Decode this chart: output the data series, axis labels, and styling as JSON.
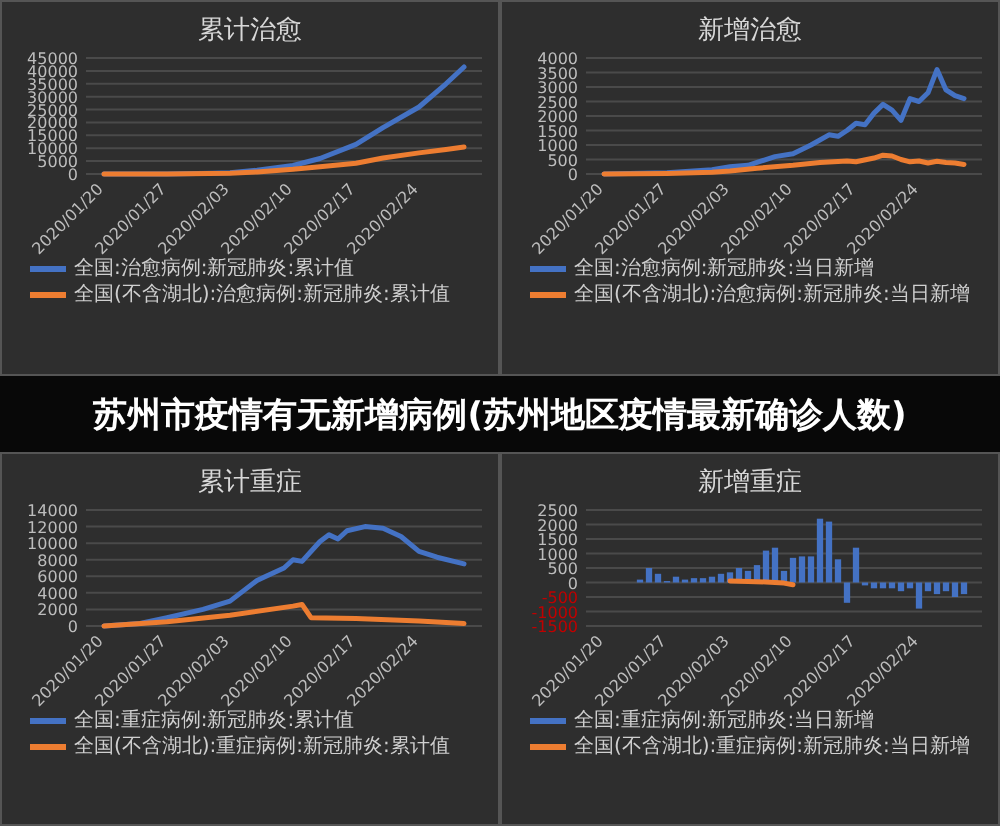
{
  "chart_data": [
    {
      "type": "line",
      "title": "累计治愈",
      "xlim": [
        "2020-01-18",
        "2020-03-02"
      ],
      "xticks": [
        {
          "value": "2020-01-20",
          "label": "2020/01/20"
        },
        {
          "value": "2020-01-27",
          "label": "2020/01/27"
        },
        {
          "value": "2020-02-03",
          "label": "2020/02/03"
        },
        {
          "value": "2020-02-10",
          "label": "2020/02/10"
        },
        {
          "value": "2020-02-17",
          "label": "2020/02/17"
        },
        {
          "value": "2020-02-24",
          "label": "2020/02/24"
        }
      ],
      "ylim": [
        0,
        45000
      ],
      "yticks": [
        0,
        5000,
        10000,
        15000,
        20000,
        25000,
        30000,
        35000,
        40000,
        45000
      ],
      "grid": "y",
      "legend": "bottom",
      "series": [
        {
          "name": "全国:治愈病例:新冠肺炎:累计值",
          "color": "#4472c4",
          "x": [
            "2020-01-20",
            "2020-01-27",
            "2020-02-01",
            "2020-02-03",
            "2020-02-06",
            "2020-02-10",
            "2020-02-13",
            "2020-02-17",
            "2020-02-20",
            "2020-02-24",
            "2020-02-27",
            "2020-02-29"
          ],
          "values": [
            0,
            0,
            300,
            500,
            1500,
            3300,
            6000,
            11500,
            18000,
            26000,
            35000,
            41500
          ]
        },
        {
          "name": "全国(不含湖北):治愈病例:新冠肺炎:累计值",
          "color": "#ed7d31",
          "x": [
            "2020-01-20",
            "2020-01-27",
            "2020-02-03",
            "2020-02-06",
            "2020-02-10",
            "2020-02-13",
            "2020-02-17",
            "2020-02-20",
            "2020-02-24",
            "2020-02-27",
            "2020-02-29"
          ],
          "values": [
            0,
            0,
            300,
            800,
            1800,
            2800,
            4200,
            6200,
            8200,
            9500,
            10500
          ]
        }
      ]
    },
    {
      "type": "line",
      "title": "新增治愈",
      "xlim": [
        "2020-01-18",
        "2020-03-02"
      ],
      "xticks": [
        {
          "value": "2020-01-20",
          "label": "2020/01/20"
        },
        {
          "value": "2020-01-27",
          "label": "2020/01/27"
        },
        {
          "value": "2020-02-03",
          "label": "2020/02/03"
        },
        {
          "value": "2020-02-10",
          "label": "2020/02/10"
        },
        {
          "value": "2020-02-17",
          "label": "2020/02/17"
        },
        {
          "value": "2020-02-24",
          "label": "2020/02/24"
        }
      ],
      "ylim": [
        0,
        4000
      ],
      "yticks": [
        0,
        500,
        1000,
        1500,
        2000,
        2500,
        3000,
        3500,
        4000
      ],
      "grid": "y",
      "legend": "bottom",
      "series": [
        {
          "name": "全国:治愈病例:新冠肺炎:当日新增",
          "color": "#4472c4",
          "x": [
            "2020-01-20",
            "2020-01-27",
            "2020-02-01",
            "2020-02-03",
            "2020-02-05",
            "2020-02-06",
            "2020-02-08",
            "2020-02-10",
            "2020-02-12",
            "2020-02-14",
            "2020-02-15",
            "2020-02-16",
            "2020-02-17",
            "2020-02-18",
            "2020-02-19",
            "2020-02-20",
            "2020-02-21",
            "2020-02-22",
            "2020-02-23",
            "2020-02-24",
            "2020-02-25",
            "2020-02-26",
            "2020-02-27",
            "2020-02-28",
            "2020-02-29"
          ],
          "values": [
            0,
            40,
            150,
            250,
            300,
            400,
            600,
            700,
            1000,
            1350,
            1300,
            1500,
            1750,
            1700,
            2100,
            2400,
            2200,
            1850,
            2600,
            2500,
            2800,
            3600,
            2900,
            2700,
            2600
          ]
        },
        {
          "name": "全国(不含湖北):治愈病例:新冠肺炎:当日新增",
          "color": "#ed7d31",
          "x": [
            "2020-01-20",
            "2020-01-27",
            "2020-02-01",
            "2020-02-03",
            "2020-02-06",
            "2020-02-10",
            "2020-02-13",
            "2020-02-16",
            "2020-02-17",
            "2020-02-19",
            "2020-02-20",
            "2020-02-21",
            "2020-02-22",
            "2020-02-23",
            "2020-02-24",
            "2020-02-25",
            "2020-02-26",
            "2020-02-27",
            "2020-02-28",
            "2020-02-29"
          ],
          "values": [
            0,
            20,
            60,
            100,
            200,
            300,
            400,
            450,
            420,
            550,
            650,
            620,
            500,
            420,
            450,
            380,
            440,
            400,
            380,
            330
          ]
        }
      ]
    },
    {
      "type": "other",
      "title": "苏州市疫情有无新增病例(苏州地区疫情最新确诊人数)"
    },
    {
      "type": "line",
      "title": "累计重症",
      "xlim": [
        "2020-01-18",
        "2020-03-02"
      ],
      "xticks": [
        {
          "value": "2020-01-20",
          "label": "2020/01/20"
        },
        {
          "value": "2020-01-27",
          "label": "2020/01/27"
        },
        {
          "value": "2020-02-03",
          "label": "2020/02/03"
        },
        {
          "value": "2020-02-10",
          "label": "2020/02/10"
        },
        {
          "value": "2020-02-17",
          "label": "2020/02/17"
        },
        {
          "value": "2020-02-24",
          "label": "2020/02/24"
        }
      ],
      "ylim": [
        0,
        14000
      ],
      "yticks": [
        0,
        2000,
        4000,
        6000,
        8000,
        10000,
        12000,
        14000
      ],
      "grid": "y",
      "legend": "bottom",
      "series": [
        {
          "name": "全国:重症病例:新冠肺炎:累计值",
          "color": "#4472c4",
          "x": [
            "2020-01-20",
            "2020-01-24",
            "2020-01-27",
            "2020-01-31",
            "2020-02-03",
            "2020-02-06",
            "2020-02-07",
            "2020-02-09",
            "2020-02-10",
            "2020-02-11",
            "2020-02-13",
            "2020-02-14",
            "2020-02-15",
            "2020-02-16",
            "2020-02-18",
            "2020-02-20",
            "2020-02-22",
            "2020-02-24",
            "2020-02-26",
            "2020-02-29"
          ],
          "values": [
            0,
            300,
            1000,
            2000,
            3000,
            5500,
            6000,
            7000,
            8000,
            7800,
            10200,
            11000,
            10500,
            11500,
            12000,
            11800,
            10800,
            9000,
            8300,
            7500
          ]
        },
        {
          "name": "全国(不含湖北):重症病例:新冠肺炎:累计值",
          "color": "#ed7d31",
          "x": [
            "2020-01-20",
            "2020-01-27",
            "2020-02-03",
            "2020-02-10",
            "2020-02-11",
            "2020-02-12",
            "2020-02-17",
            "2020-02-24",
            "2020-02-29"
          ],
          "values": [
            0,
            500,
            1300,
            2400,
            2600,
            1000,
            900,
            600,
            300
          ]
        }
      ]
    },
    {
      "type": "line",
      "title": "新增重症",
      "xlim": [
        "2020-01-18",
        "2020-03-02"
      ],
      "xticks": [
        {
          "value": "2020-01-20",
          "label": "2020/01/20"
        },
        {
          "value": "2020-01-27",
          "label": "2020/01/27"
        },
        {
          "value": "2020-02-03",
          "label": "2020/02/03"
        },
        {
          "value": "2020-02-10",
          "label": "2020/02/10"
        },
        {
          "value": "2020-02-17",
          "label": "2020/02/17"
        },
        {
          "value": "2020-02-24",
          "label": "2020/02/24"
        }
      ],
      "ylim": [
        -1500,
        2500
      ],
      "yticks": [
        -1500,
        -1000,
        -500,
        0,
        500,
        1000,
        1500,
        2000,
        2500
      ],
      "grid": "y",
      "legend": "bottom",
      "series": [
        {
          "name": "全国:重症病例:新冠肺炎:当日新增",
          "type": "bar",
          "color": "#4472c4",
          "x": [
            "2020-01-24",
            "2020-01-25",
            "2020-01-26",
            "2020-01-27",
            "2020-01-28",
            "2020-01-29",
            "2020-01-30",
            "2020-01-31",
            "2020-02-01",
            "2020-02-02",
            "2020-02-03",
            "2020-02-04",
            "2020-02-05",
            "2020-02-06",
            "2020-02-07",
            "2020-02-08",
            "2020-02-09",
            "2020-02-10",
            "2020-02-11",
            "2020-02-12",
            "2020-02-13",
            "2020-02-14",
            "2020-02-15",
            "2020-02-16",
            "2020-02-17",
            "2020-02-18",
            "2020-02-19",
            "2020-02-20",
            "2020-02-21",
            "2020-02-22",
            "2020-02-23",
            "2020-02-24",
            "2020-02-25",
            "2020-02-26",
            "2020-02-27",
            "2020-02-28",
            "2020-02-29"
          ],
          "values": [
            100,
            500,
            300,
            50,
            200,
            100,
            150,
            150,
            200,
            300,
            350,
            500,
            400,
            600,
            1100,
            1200,
            400,
            850,
            900,
            900,
            2200,
            2100,
            800,
            -700,
            1200,
            -100,
            -200,
            -200,
            -200,
            -300,
            -200,
            -900,
            -300,
            -400,
            -300,
            -500,
            -400
          ]
        },
        {
          "name": "全国(不含湖北):重症病例:新冠肺炎:当日新增",
          "color": "#ed7d31",
          "x": [
            "2020-02-03",
            "2020-02-05",
            "2020-02-07",
            "2020-02-09",
            "2020-02-10"
          ],
          "values": [
            50,
            30,
            20,
            -20,
            -80
          ]
        }
      ]
    }
  ]
}
